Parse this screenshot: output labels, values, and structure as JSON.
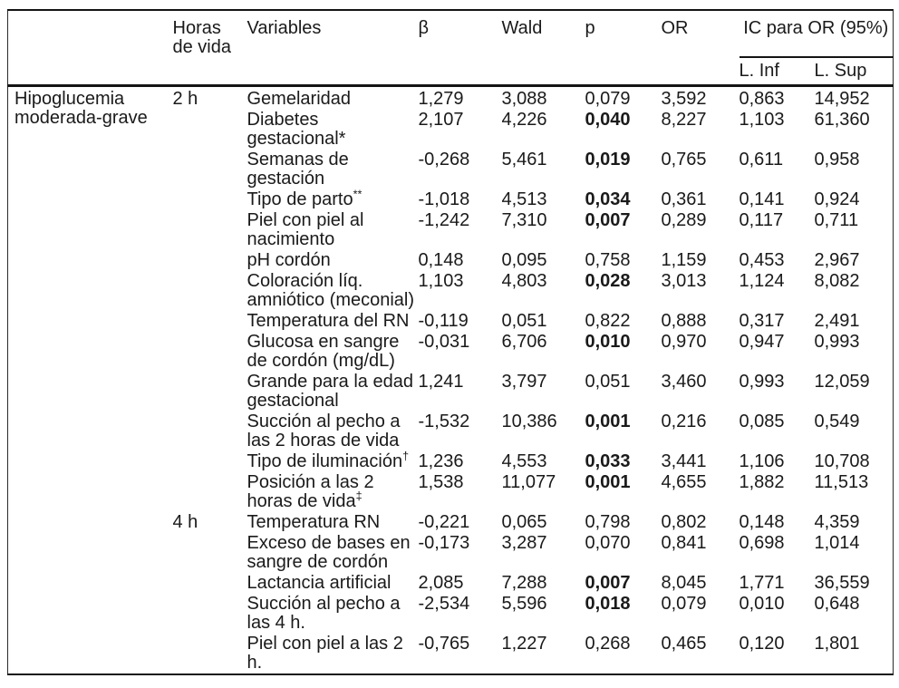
{
  "table": {
    "outcome_label": "Hipoglucemia moderada-grave",
    "headers": {
      "corner": "",
      "hours": "Horas de vida",
      "variables": "Variables",
      "beta": "β",
      "wald": "Wald",
      "p": "p",
      "or": "OR",
      "ci": "IC para OR (95%)",
      "ci_low": "L. Inf",
      "ci_high": "L. Sup"
    },
    "groups": [
      {
        "hours": "2 h",
        "row_count": 13
      },
      {
        "hours": "4 h",
        "row_count": 5
      }
    ],
    "rows": [
      {
        "variable": "Gemelaridad",
        "beta": "1,279",
        "wald": "3,088",
        "p": "0,079",
        "p_bold": false,
        "or": "3,592",
        "ci_low": "0,863",
        "ci_high": "14,952"
      },
      {
        "variable": "Diabetes gestacional*",
        "beta": "2,107",
        "wald": "4,226",
        "p": "0,040",
        "p_bold": true,
        "or": "8,227",
        "ci_low": "1,103",
        "ci_high": "61,360"
      },
      {
        "variable": "Semanas de gestación",
        "beta": "-0,268",
        "wald": "5,461",
        "p": "0,019",
        "p_bold": true,
        "or": "0,765",
        "ci_low": "0,611",
        "ci_high": "0,958"
      },
      {
        "variable": "Tipo de parto",
        "sup": "**",
        "beta": "-1,018",
        "wald": "4,513",
        "p": "0,034",
        "p_bold": true,
        "or": "0,361",
        "ci_low": "0,141",
        "ci_high": "0,924"
      },
      {
        "variable": "Piel con piel al nacimiento",
        "beta": "-1,242",
        "wald": "7,310",
        "p": "0,007",
        "p_bold": true,
        "or": "0,289",
        "ci_low": "0,117",
        "ci_high": "0,711"
      },
      {
        "variable": "pH cordón",
        "beta": "0,148",
        "wald": "0,095",
        "p": "0,758",
        "p_bold": false,
        "or": "1,159",
        "ci_low": "0,453",
        "ci_high": "2,967"
      },
      {
        "variable": "Coloración líq. amniótico (meconial)",
        "beta": "1,103",
        "wald": "4,803",
        "p": "0,028",
        "p_bold": true,
        "or": "3,013",
        "ci_low": "1,124",
        "ci_high": "8,082"
      },
      {
        "variable": "Temperatura del RN",
        "beta": "-0,119",
        "wald": "0,051",
        "p": "0,822",
        "p_bold": false,
        "or": "0,888",
        "ci_low": "0,317",
        "ci_high": "2,491"
      },
      {
        "variable": "Glucosa en sangre de cordón (mg/dL)",
        "beta": "-0,031",
        "wald": "6,706",
        "p": "0,010",
        "p_bold": true,
        "or": "0,970",
        "ci_low": "0,947",
        "ci_high": "0,993"
      },
      {
        "variable": "Grande para la edad gestacional",
        "beta": "1,241",
        "wald": "3,797",
        "p": "0,051",
        "p_bold": false,
        "or": "3,460",
        "ci_low": "0,993",
        "ci_high": "12,059"
      },
      {
        "variable": "Succión al pecho a las 2 horas de vida",
        "beta": "-1,532",
        "wald": "10,386",
        "p": "0,001",
        "p_bold": true,
        "or": "0,216",
        "ci_low": "0,085",
        "ci_high": "0,549"
      },
      {
        "variable": "Tipo de iluminación",
        "sup": "†",
        "beta": "1,236",
        "wald": "4,553",
        "p": "0,033",
        "p_bold": true,
        "or": "3,441",
        "ci_low": "1,106",
        "ci_high": "10,708"
      },
      {
        "variable": "Posición a las 2 horas de vida",
        "sup": "‡",
        "beta": "1,538",
        "wald": "11,077",
        "p": "0,001",
        "p_bold": true,
        "or": "4,655",
        "ci_low": "1,882",
        "ci_high": "11,513"
      },
      {
        "variable": "Temperatura RN",
        "beta": "-0,221",
        "wald": "0,065",
        "p": "0,798",
        "p_bold": false,
        "or": "0,802",
        "ci_low": "0,148",
        "ci_high": "4,359"
      },
      {
        "variable": "Exceso de bases en sangre de cordón",
        "beta": "-0,173",
        "wald": "3,287",
        "p": "0,070",
        "p_bold": false,
        "or": "0,841",
        "ci_low": "0,698",
        "ci_high": "1,014"
      },
      {
        "variable": "Lactancia artificial",
        "beta": "2,085",
        "wald": "7,288",
        "p": "0,007",
        "p_bold": true,
        "or": "8,045",
        "ci_low": "1,771",
        "ci_high": "36,559"
      },
      {
        "variable": "Succión al pecho a las 4 h.",
        "beta": "-2,534",
        "wald": "5,596",
        "p": "0,018",
        "p_bold": true,
        "or": "0,079",
        "ci_low": "0,010",
        "ci_high": "0,648"
      },
      {
        "variable": "Piel con piel a las 2 h.",
        "beta": "-0,765",
        "wald": "1,227",
        "p": "0,268",
        "p_bold": false,
        "or": "0,465",
        "ci_low": "0,120",
        "ci_high": "1,801"
      }
    ],
    "colors": {
      "text": "#1a1a1a",
      "rule": "#141414",
      "background": "#ffffff"
    }
  }
}
